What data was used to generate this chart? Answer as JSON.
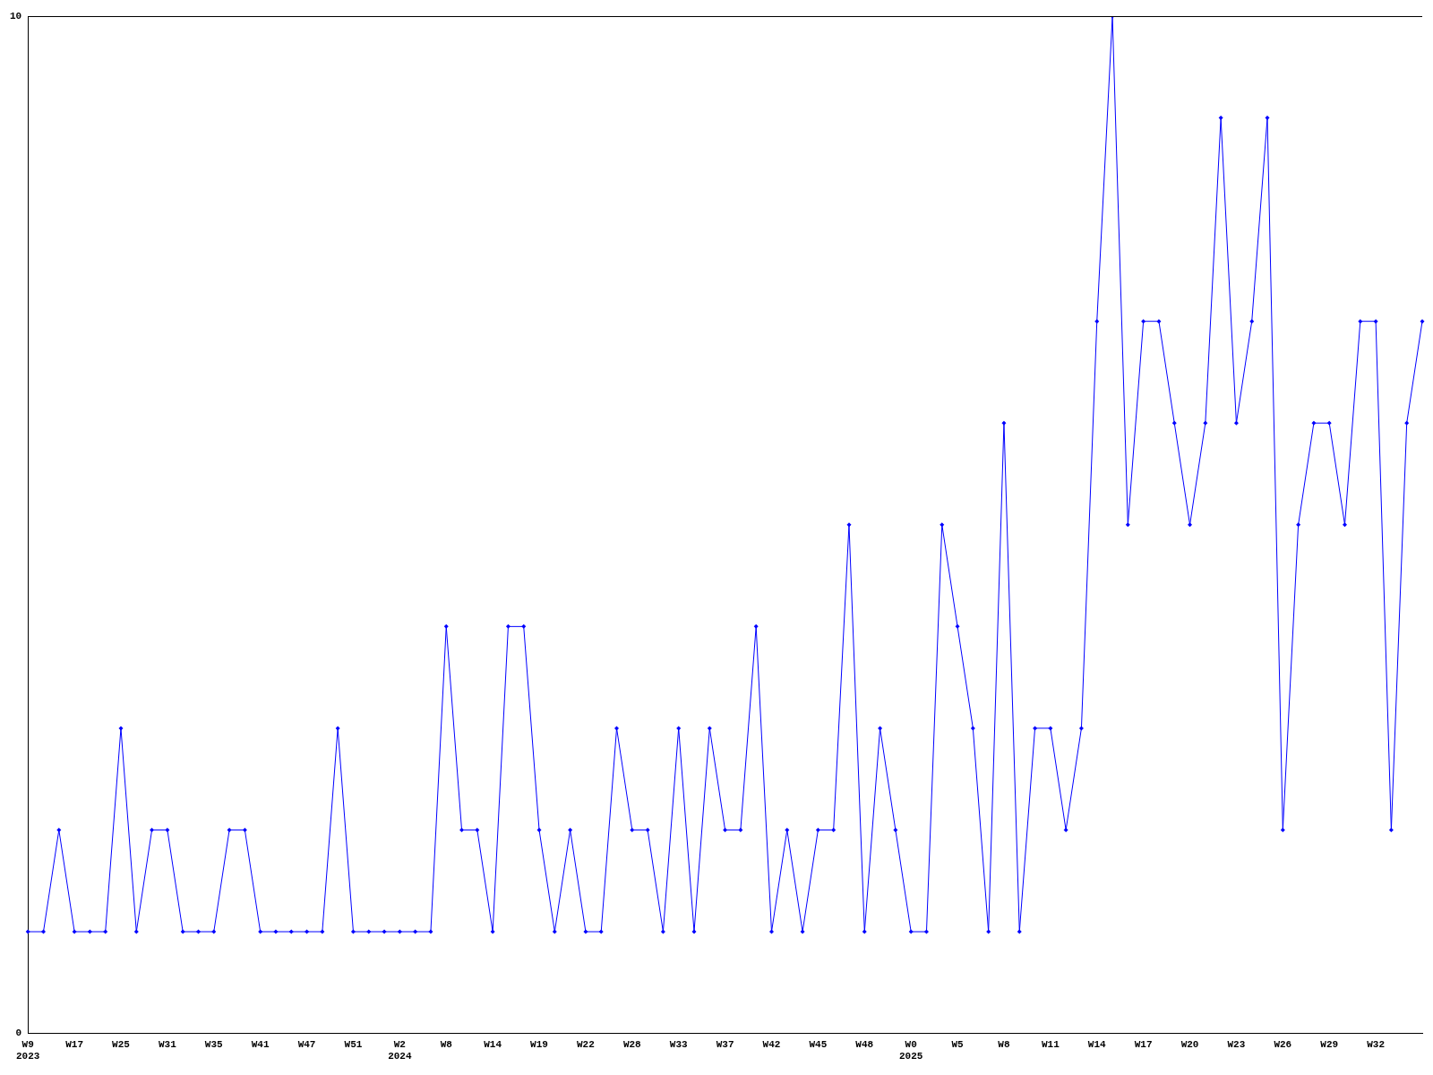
{
  "chart_data": {
    "type": "line",
    "categories": [
      "W9\n2023",
      null,
      null,
      "W17",
      null,
      null,
      "W25",
      null,
      null,
      "W31",
      null,
      null,
      "W35",
      null,
      null,
      "W41",
      null,
      null,
      "W47",
      null,
      null,
      "W51",
      null,
      null,
      "W2\n2024",
      null,
      null,
      "W8",
      null,
      null,
      "W14",
      null,
      null,
      "W19",
      null,
      null,
      "W22",
      null,
      null,
      "W28",
      null,
      null,
      "W33",
      null,
      null,
      "W37",
      null,
      null,
      "W42",
      null,
      null,
      "W45",
      null,
      null,
      "W48",
      null,
      null,
      "W0\n2025",
      null,
      null,
      "W5",
      null,
      null,
      "W8",
      null,
      null,
      "W11",
      null,
      null,
      "W14",
      null,
      null,
      "W17",
      null,
      null,
      "W20",
      null,
      null,
      "W23",
      null,
      null,
      "W26",
      null,
      null,
      "W29",
      null,
      null,
      "W32",
      null,
      null,
      null
    ],
    "series": [
      {
        "color": "#0000ff",
        "values": [
          1,
          1,
          2,
          1,
          1,
          1,
          3,
          1,
          2,
          2,
          1,
          1,
          1,
          2,
          2,
          1,
          1,
          1,
          1,
          1,
          3,
          1,
          1,
          1,
          1,
          1,
          1,
          4,
          2,
          2,
          1,
          4,
          4,
          2,
          1,
          2,
          1,
          1,
          3,
          2,
          2,
          1,
          3,
          1,
          3,
          2,
          2,
          4,
          1,
          2,
          1,
          2,
          2,
          5,
          1,
          3,
          2,
          1,
          1,
          5,
          4,
          3,
          1,
          6,
          1,
          3,
          3,
          2,
          3,
          7,
          10,
          5,
          7,
          7,
          6,
          5,
          6,
          9,
          6,
          7,
          9,
          2,
          5,
          6,
          6,
          5,
          7,
          7,
          2,
          6,
          7
        ]
      }
    ],
    "ylim": [
      0,
      10
    ],
    "yticks": [
      0,
      10
    ],
    "grid": false,
    "legend": false,
    "marker": "diamond",
    "line_style": "solid"
  }
}
